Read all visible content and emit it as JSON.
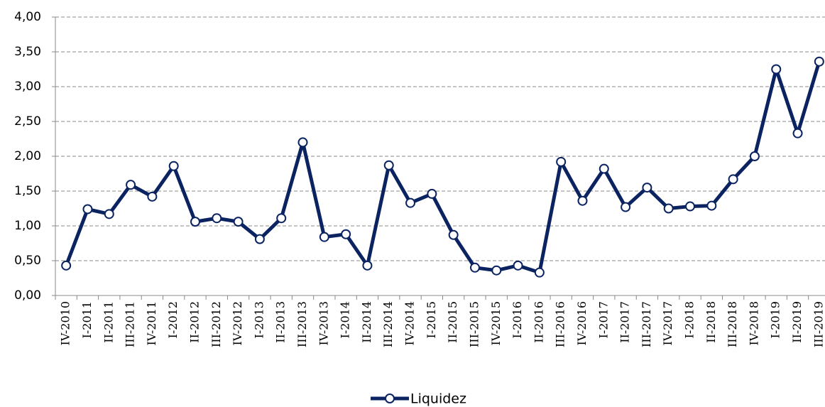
{
  "chart_data": {
    "type": "line",
    "categories": [
      "IV-2010",
      "I-2011",
      "II-2011",
      "III-2011",
      "IV-2011",
      "I-2012",
      "II-2012",
      "III-2012",
      "IV-2012",
      "I-2013",
      "II-2013",
      "III-2013",
      "IV-2013",
      "I-2014",
      "II-2014",
      "III-2014",
      "IV-2014",
      "I-2015",
      "II-2015",
      "III-2015",
      "IV-2015",
      "I-2016",
      "II-2016",
      "III-2016",
      "IV-2016",
      "I-2017",
      "II-2017",
      "III-2017",
      "IV-2017",
      "I-2018",
      "II-2018",
      "III-2018",
      "IV-2018",
      "I-2019",
      "II-2019",
      "III-2019"
    ],
    "series": [
      {
        "name": "Liquidez",
        "color": "#0b2461",
        "values": [
          0.43,
          1.24,
          1.17,
          1.59,
          1.42,
          1.86,
          1.06,
          1.11,
          1.06,
          0.81,
          1.11,
          2.2,
          0.84,
          0.88,
          0.43,
          1.87,
          1.33,
          1.46,
          0.87,
          0.4,
          0.36,
          0.43,
          0.33,
          1.92,
          1.36,
          1.82,
          1.27,
          1.55,
          1.25,
          1.28,
          1.29,
          1.67,
          2.0,
          3.25,
          2.33,
          3.36
        ]
      }
    ],
    "ylim": [
      0,
      4
    ],
    "yticks": [
      {
        "value": 0,
        "label": "0,00"
      },
      {
        "value": 0.5,
        "label": "0,50"
      },
      {
        "value": 1,
        "label": "1,00"
      },
      {
        "value": 1.5,
        "label": "1,50"
      },
      {
        "value": 2,
        "label": "2,00"
      },
      {
        "value": 2.5,
        "label": "2,50"
      },
      {
        "value": 3,
        "label": "3,00"
      },
      {
        "value": 3.5,
        "label": "3,50"
      },
      {
        "value": 4,
        "label": "4,00"
      }
    ],
    "grid": true,
    "legend": "bottom"
  }
}
